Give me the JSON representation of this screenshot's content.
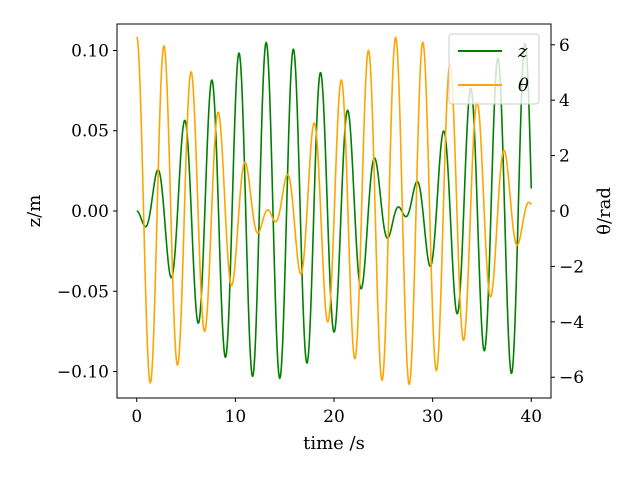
{
  "chart_data": {
    "type": "line",
    "xlabel": "time /s",
    "ylabel_left": "z/m",
    "ylabel_right": "θ/rad",
    "xlim": [
      -2,
      42
    ],
    "ylim_left": [
      -0.1165,
      0.1165
    ],
    "ylim_right": [
      -6.75,
      6.75
    ],
    "x_ticks": [
      0,
      10,
      20,
      30,
      40
    ],
    "x_tick_labels": [
      "0",
      "10",
      "20",
      "30",
      "40"
    ],
    "y_left_ticks": [
      0.1,
      0.05,
      0.0,
      -0.05,
      -0.1
    ],
    "y_left_tick_labels": [
      "0.10",
      "0.05",
      "0.00",
      "−0.05",
      "−0.10"
    ],
    "y_right_ticks": [
      6,
      4,
      2,
      0,
      -2,
      -4,
      -6
    ],
    "y_right_tick_labels": [
      "6",
      "4",
      "2",
      "0",
      "−2",
      "−4",
      "−6"
    ],
    "grid": false,
    "legend_position": "top-right",
    "series": [
      {
        "name": "z",
        "axis": "left",
        "color": "#008000",
        "model": "z(t) = -A·sin(w1·t)·sin(w2·t)",
        "amplitude": 0.105,
        "w1": 0.1169,
        "w2": 2.2743,
        "t_start": 0,
        "t_end": 40
      },
      {
        "name": "θ",
        "axis": "right",
        "color": "#FFA500",
        "model": "θ(t) = A·cos(w1·t)·cos(w2·t)",
        "amplitude": 6.28,
        "w1": 0.1169,
        "w2": 2.2743,
        "t_start": 0,
        "t_end": 40
      }
    ]
  }
}
